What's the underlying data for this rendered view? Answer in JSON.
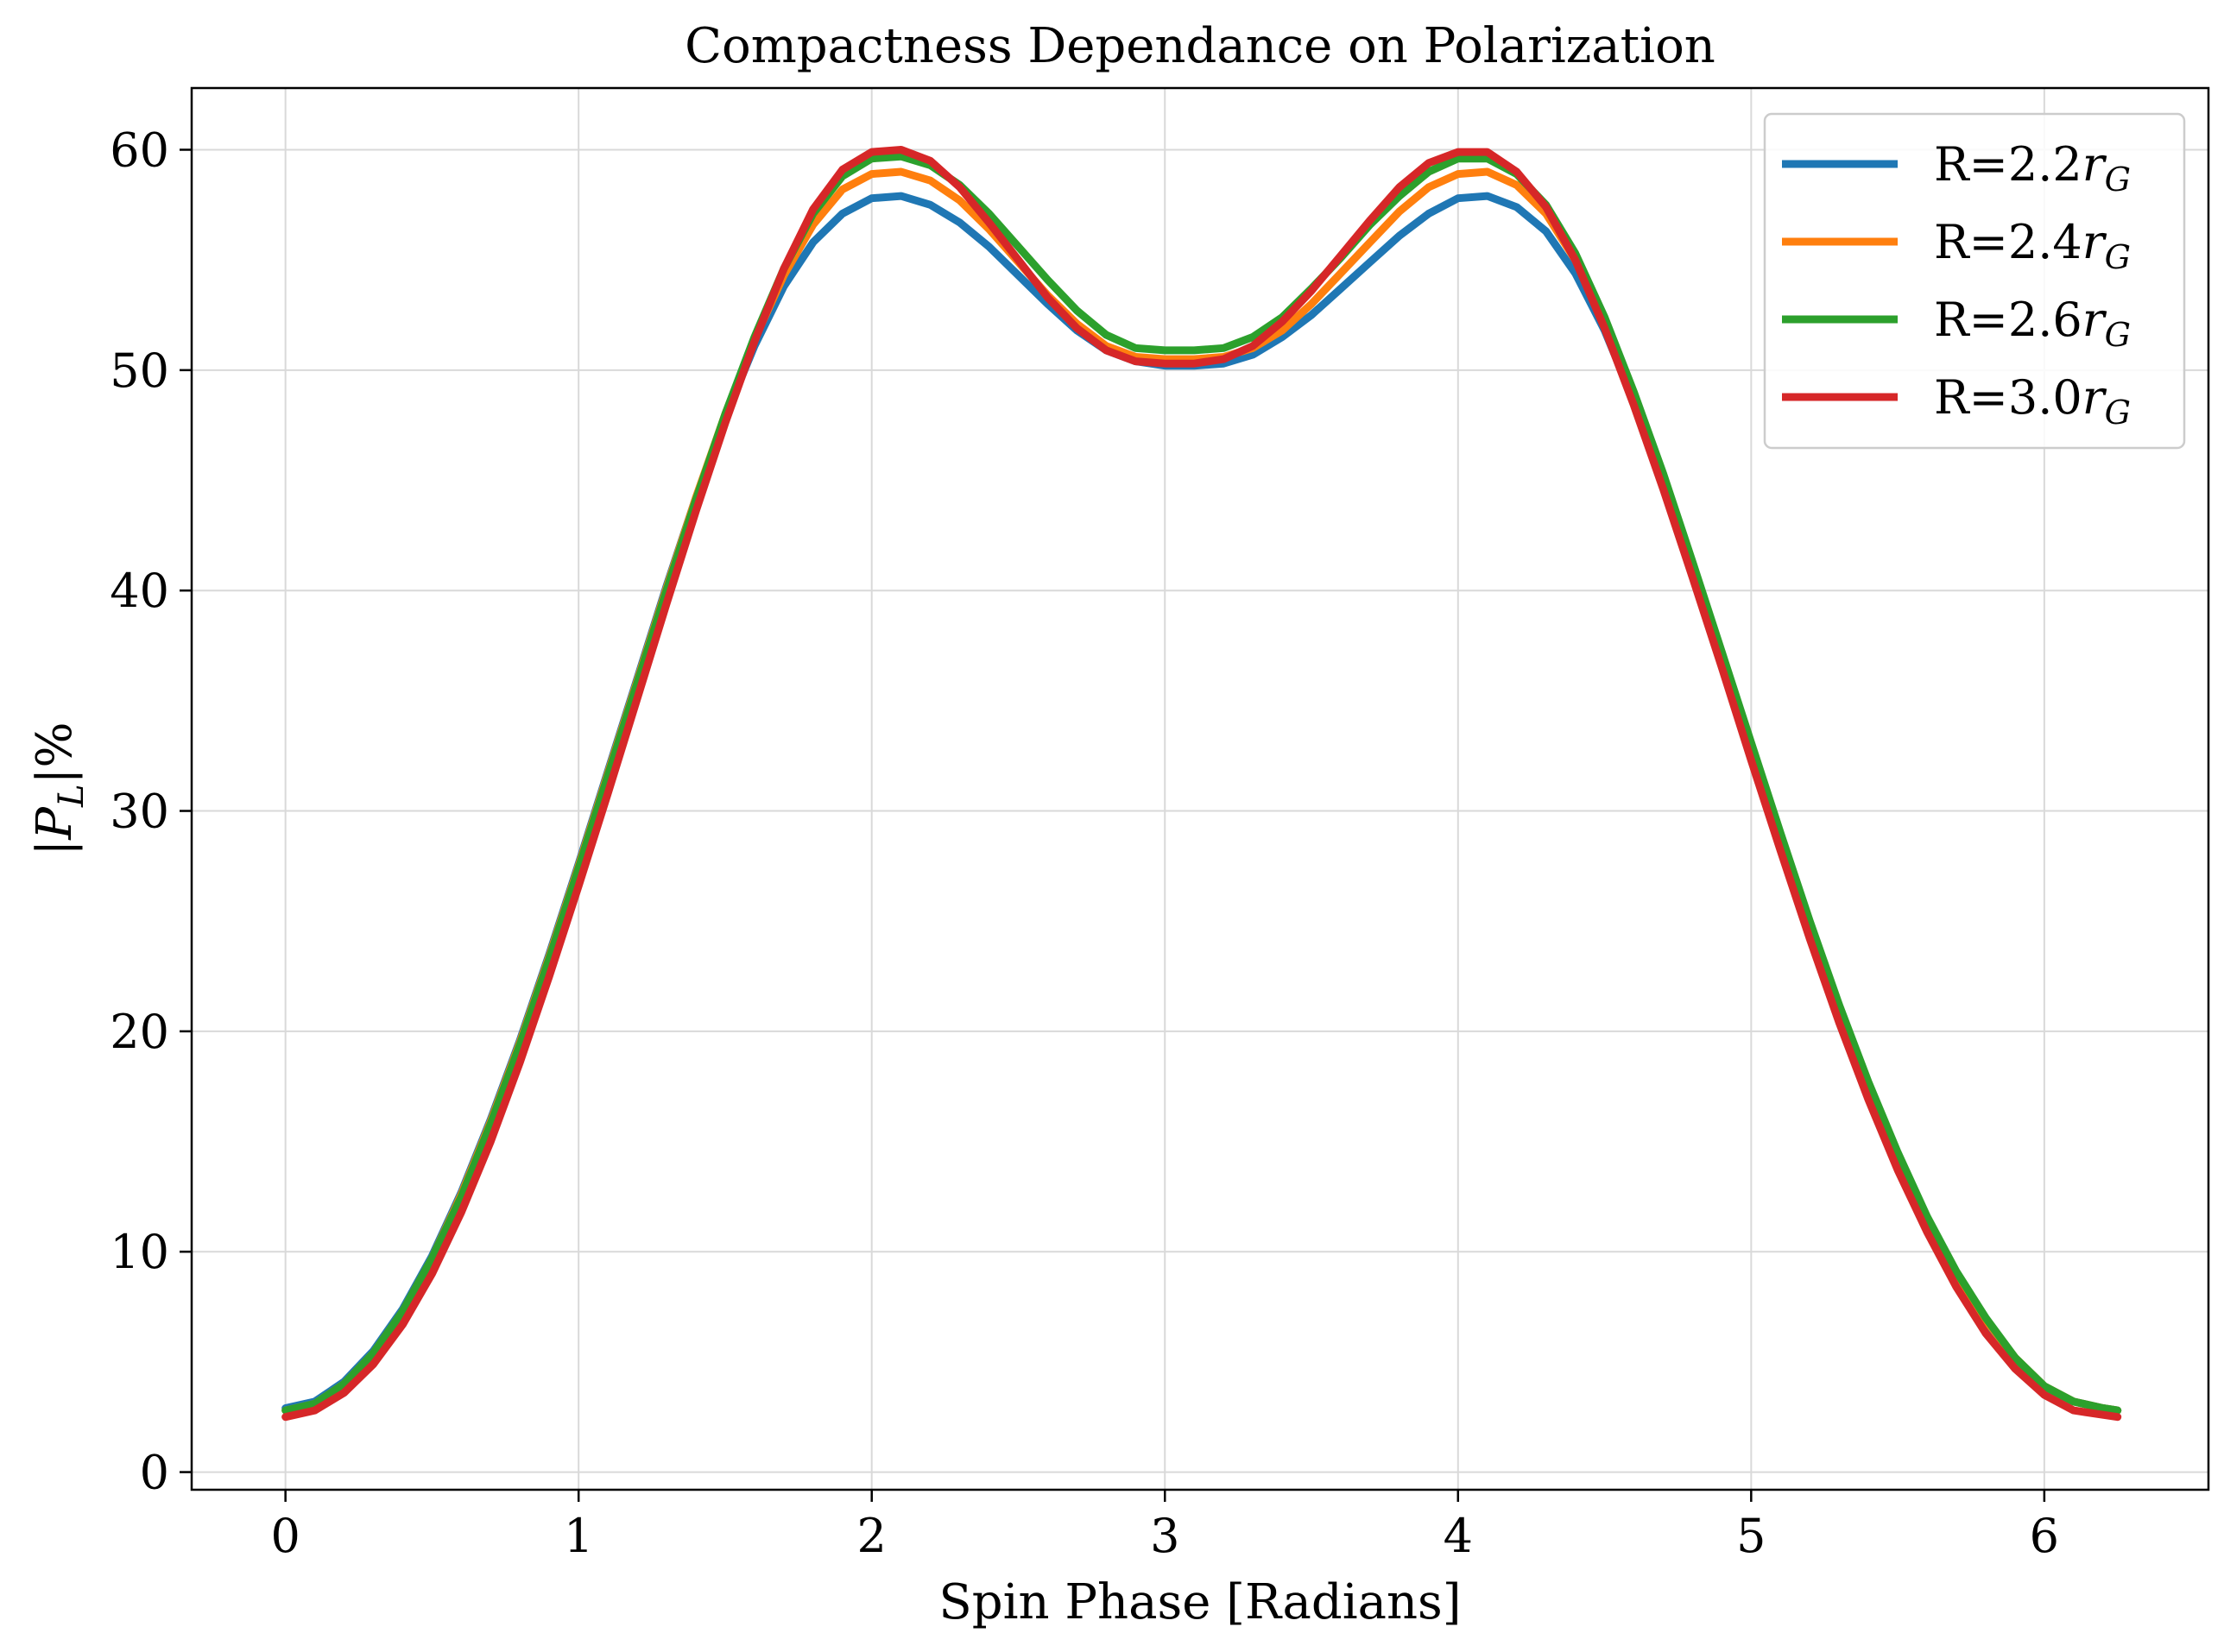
{
  "chart_data": {
    "type": "line",
    "title": "Compactness Dependance on Polarization",
    "xlabel": "Spin Phase [Radians]",
    "ylabel": "|P_L|%",
    "ylabel_parts": {
      "main": "|P",
      "sub": "L",
      "rest": "|%"
    },
    "xlim": [
      -0.32,
      6.56
    ],
    "ylim": [
      -0.8,
      62.8
    ],
    "xticks": [
      0,
      1,
      2,
      3,
      4,
      5,
      6
    ],
    "yticks": [
      0,
      10,
      20,
      30,
      40,
      50,
      60
    ],
    "grid": true,
    "legend_position": "top-right",
    "x": [
      0.0,
      0.1,
      0.2,
      0.3,
      0.4,
      0.5,
      0.6,
      0.7,
      0.8,
      0.9,
      1.0,
      1.1,
      1.2,
      1.3,
      1.4,
      1.5,
      1.6,
      1.7,
      1.8,
      1.9,
      2.0,
      2.1,
      2.2,
      2.3,
      2.4,
      2.5,
      2.6,
      2.7,
      2.8,
      2.9,
      3.0,
      3.1,
      3.2,
      3.3,
      3.4,
      3.5,
      3.6,
      3.7,
      3.8,
      3.9,
      4.0,
      4.1,
      4.2,
      4.3,
      4.4,
      4.5,
      4.6,
      4.7,
      4.8,
      4.9,
      5.0,
      5.1,
      5.2,
      5.3,
      5.4,
      5.5,
      5.6,
      5.7,
      5.8,
      5.9,
      6.0,
      6.1,
      6.2,
      6.25
    ],
    "series": [
      {
        "name": "R=2.2r_G",
        "label_main": "R=2.2r",
        "label_sub": "G",
        "color": "#1f77b4",
        "values": [
          2.9,
          3.2,
          4.1,
          5.5,
          7.4,
          9.8,
          12.7,
          16.0,
          19.6,
          23.5,
          27.6,
          31.8,
          36.0,
          40.2,
          44.2,
          47.9,
          51.1,
          53.8,
          55.8,
          57.1,
          57.8,
          57.9,
          57.5,
          56.7,
          55.6,
          54.3,
          53.0,
          51.8,
          50.9,
          50.4,
          50.2,
          50.2,
          50.3,
          50.7,
          51.5,
          52.5,
          53.7,
          54.9,
          56.1,
          57.1,
          57.8,
          57.9,
          57.4,
          56.3,
          54.4,
          51.8,
          48.6,
          45.0,
          41.1,
          37.0,
          32.9,
          28.8,
          24.8,
          21.0,
          17.5,
          14.3,
          11.4,
          8.9,
          6.8,
          5.1,
          3.8,
          3.2,
          2.9,
          2.8
        ]
      },
      {
        "name": "R=2.4r_G",
        "label_main": "R=2.4r",
        "label_sub": "G",
        "color": "#ff7f0e",
        "values": [
          2.8,
          3.1,
          4.0,
          5.4,
          7.3,
          9.7,
          12.6,
          15.9,
          19.5,
          23.4,
          27.5,
          31.7,
          35.9,
          40.1,
          44.2,
          48.0,
          51.4,
          54.3,
          56.6,
          58.2,
          58.9,
          59.0,
          58.6,
          57.7,
          56.4,
          54.9,
          53.4,
          52.1,
          51.1,
          50.6,
          50.5,
          50.5,
          50.6,
          51.0,
          51.8,
          53.0,
          54.4,
          55.8,
          57.2,
          58.3,
          58.9,
          59.0,
          58.4,
          57.1,
          55.0,
          52.2,
          48.9,
          45.2,
          41.2,
          37.1,
          33.0,
          28.9,
          24.9,
          21.1,
          17.6,
          14.4,
          11.5,
          9.0,
          6.9,
          5.2,
          3.9,
          3.2,
          2.9,
          2.8
        ]
      },
      {
        "name": "R=2.6r_G",
        "label_main": "R=2.6r",
        "label_sub": "G",
        "color": "#2ca02c",
        "values": [
          2.8,
          3.1,
          4.0,
          5.4,
          7.3,
          9.7,
          12.5,
          15.8,
          19.4,
          23.3,
          27.4,
          31.6,
          35.8,
          40.0,
          44.1,
          48.0,
          51.5,
          54.6,
          57.1,
          58.8,
          59.6,
          59.7,
          59.3,
          58.4,
          57.1,
          55.6,
          54.1,
          52.7,
          51.6,
          51.0,
          50.9,
          50.9,
          51.0,
          51.5,
          52.4,
          53.7,
          55.1,
          56.6,
          57.9,
          59.0,
          59.6,
          59.6,
          58.9,
          57.5,
          55.3,
          52.4,
          49.0,
          45.3,
          41.3,
          37.2,
          33.1,
          29.0,
          25.0,
          21.2,
          17.7,
          14.5,
          11.6,
          9.1,
          7.0,
          5.2,
          3.9,
          3.2,
          2.9,
          2.8
        ]
      },
      {
        "name": "R=3.0r_G",
        "label_main": "R=3.0r",
        "label_sub": "G",
        "color": "#d62728",
        "values": [
          2.5,
          2.8,
          3.6,
          4.9,
          6.7,
          9.0,
          11.8,
          15.0,
          18.6,
          22.5,
          26.6,
          30.8,
          35.1,
          39.4,
          43.6,
          47.6,
          51.3,
          54.6,
          57.3,
          59.1,
          59.9,
          60.0,
          59.5,
          58.3,
          56.7,
          55.0,
          53.3,
          51.9,
          50.9,
          50.4,
          50.3,
          50.3,
          50.5,
          51.1,
          52.2,
          53.6,
          55.2,
          56.8,
          58.3,
          59.4,
          59.9,
          59.9,
          59.0,
          57.4,
          55.0,
          51.9,
          48.4,
          44.6,
          40.6,
          36.5,
          32.3,
          28.2,
          24.2,
          20.4,
          16.9,
          13.7,
          10.9,
          8.4,
          6.3,
          4.7,
          3.5,
          2.8,
          2.6,
          2.5
        ]
      }
    ]
  }
}
